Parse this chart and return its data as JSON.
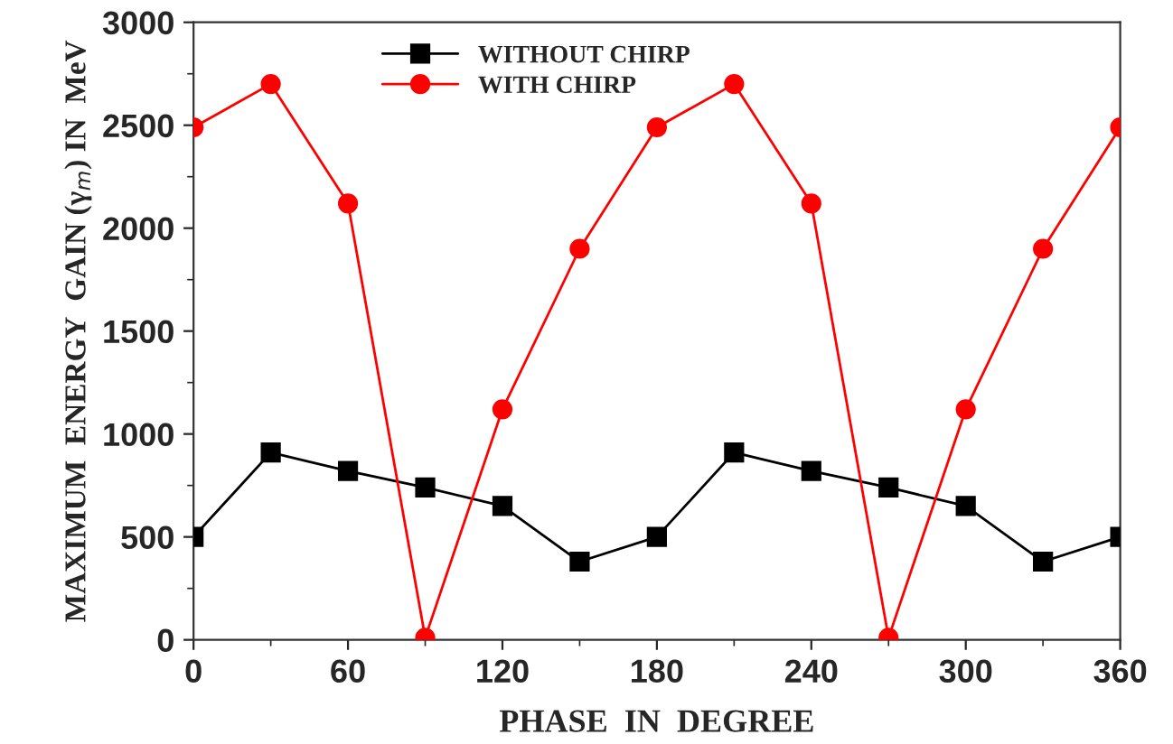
{
  "chart_data": {
    "type": "line",
    "xlabel": "PHASE  IN  DEGREE",
    "ylabel": "MAXIMUM  ENERGY  GAIN (γ$_{m}$) IN  MeV",
    "x": [
      0,
      30,
      60,
      90,
      120,
      150,
      180,
      210,
      240,
      270,
      300,
      330,
      360
    ],
    "series": [
      {
        "name": "WITHOUT CHIRP",
        "color": "#000000",
        "marker": "square",
        "values": [
          500,
          910,
          820,
          740,
          650,
          380,
          500,
          910,
          820,
          740,
          650,
          380,
          500
        ]
      },
      {
        "name": "WITH CHIRP",
        "color": "#ff0000",
        "marker": "circle",
        "values": [
          2490,
          2700,
          2120,
          10,
          1120,
          1900,
          2490,
          2700,
          2120,
          10,
          1120,
          1900,
          2490
        ]
      }
    ],
    "xlim": [
      0,
      360
    ],
    "xticks": [
      0,
      60,
      120,
      180,
      240,
      300,
      360
    ],
    "ylim": [
      0,
      3000
    ],
    "yticks": [
      0,
      500,
      1000,
      1500,
      2000,
      2500,
      3000
    ],
    "legend": "top",
    "grid": false,
    "line_style": "solid"
  }
}
